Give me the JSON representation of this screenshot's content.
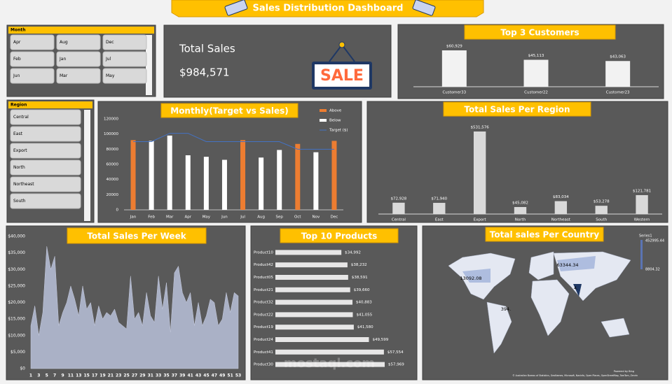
{
  "header": {
    "title": "Sales Distribution Dashboard"
  },
  "slicers": [
    {
      "title": "Month",
      "items": [
        "Apr",
        "Aug",
        "Dec",
        "Feb",
        "Jan",
        "Jul",
        "Jun",
        "Mar",
        "May"
      ]
    },
    {
      "title": "Region",
      "items": [
        "Central",
        "East",
        "Export",
        "North",
        "Northeast",
        "South"
      ]
    }
  ],
  "kpi": {
    "label": "Total Sales",
    "value": "$984,571",
    "sign": "SALE"
  },
  "watermark": "mostaql.com",
  "chart_data": [
    {
      "type": "bar",
      "title": "Top 3 Customers",
      "categories": [
        "Customer33",
        "Customer22",
        "Customer23"
      ],
      "values": [
        60929,
        45113,
        43063
      ],
      "value_labels": [
        "$60,929",
        "$45,113",
        "$43,063"
      ],
      "color": "#f2f2f2"
    },
    {
      "type": "combo",
      "title": "Monthly(Target vs Sales)",
      "categories": [
        "Jan",
        "Feb",
        "Mar",
        "Apr",
        "May",
        "Jun",
        "Jul",
        "Aug",
        "Sep",
        "Oct",
        "Nov",
        "Dec"
      ],
      "series": [
        {
          "name": "Above",
          "color": "#ed7d31",
          "values": [
            92000,
            null,
            null,
            null,
            null,
            null,
            92000,
            null,
            null,
            87000,
            null,
            91000
          ]
        },
        {
          "name": "Below",
          "color": "#ffffff",
          "values": [
            null,
            91000,
            98000,
            72000,
            70000,
            66000,
            null,
            69000,
            79000,
            null,
            76000,
            null
          ]
        },
        {
          "name": "Target ($)",
          "color": "#4472c4",
          "type": "line",
          "values": [
            90000,
            90000,
            101000,
            101000,
            90000,
            90000,
            90000,
            90000,
            90000,
            80000,
            80000,
            80000
          ]
        }
      ],
      "ylim": [
        0,
        120000
      ],
      "yticks": [
        0,
        20000,
        40000,
        60000,
        80000,
        100000,
        120000
      ],
      "legend": "top-right",
      "grid": false
    },
    {
      "type": "bar",
      "title": "Total Sales Per Region",
      "categories": [
        "Central",
        "East",
        "Export",
        "North",
        "Northeast",
        "South",
        "Western"
      ],
      "values": [
        72928,
        71940,
        531576,
        45082,
        83034,
        53278,
        121781
      ],
      "value_labels": [
        "$72,928",
        "$71,940",
        "$531,576",
        "$45,082",
        "$83,034",
        "$53,278",
        "$121,781"
      ],
      "color": "#d9d9d9"
    },
    {
      "type": "area",
      "title": "Total Sales Per Week",
      "x": [
        1,
        2,
        3,
        4,
        5,
        6,
        7,
        8,
        9,
        10,
        11,
        12,
        13,
        14,
        15,
        16,
        17,
        18,
        19,
        20,
        21,
        22,
        23,
        24,
        25,
        26,
        27,
        28,
        29,
        30,
        31,
        32,
        33,
        34,
        35,
        36,
        37,
        38,
        39,
        40,
        41,
        42,
        43,
        44,
        45,
        46,
        47,
        48,
        49,
        50,
        51,
        52,
        53
      ],
      "values": [
        13000,
        19000,
        10000,
        17000,
        37000,
        30000,
        34000,
        13000,
        17000,
        20000,
        25000,
        21000,
        16000,
        25000,
        18000,
        20000,
        13000,
        19000,
        15000,
        17000,
        16000,
        18000,
        14000,
        13000,
        12000,
        28000,
        15000,
        17000,
        13000,
        23000,
        16000,
        14000,
        28000,
        18000,
        26000,
        11000,
        29000,
        31000,
        23000,
        20000,
        23000,
        13000,
        20000,
        13000,
        16000,
        21000,
        20000,
        13000,
        15000,
        23000,
        17000,
        23000,
        22000
      ],
      "color": "#aab1c6",
      "xlim": [
        1,
        53
      ],
      "xticks": [
        1,
        3,
        5,
        7,
        9,
        11,
        13,
        15,
        17,
        19,
        21,
        23,
        25,
        27,
        29,
        31,
        33,
        35,
        37,
        39,
        41,
        43,
        45,
        47,
        49,
        51,
        53
      ],
      "ylim": [
        0,
        40000
      ],
      "yticks": [
        {
          "value": 0,
          "label": "$0"
        },
        {
          "value": 5000,
          "label": "$5,000"
        },
        {
          "value": 10000,
          "label": "$10,000"
        },
        {
          "value": 15000,
          "label": "$15,000"
        },
        {
          "value": 20000,
          "label": "$20,000"
        },
        {
          "value": 25000,
          "label": "$25,000"
        },
        {
          "value": 30000,
          "label": "$30,000"
        },
        {
          "value": 35000,
          "label": "$35,000"
        },
        {
          "value": 40000,
          "label": "$40,000"
        }
      ]
    },
    {
      "type": "hbar",
      "title": "Top 10 Products",
      "categories": [
        "Product10",
        "Product42",
        "Product05",
        "Product21",
        "Product32",
        "Product22",
        "Product19",
        "Product24",
        "Product41",
        "Product30"
      ],
      "values": [
        34992,
        38232,
        38591,
        39660,
        40883,
        41055,
        41580,
        49599,
        57554,
        57969
      ],
      "value_labels": [
        "$34,992",
        "$38,232",
        "$38,591",
        "$39,660",
        "$40,883",
        "$41,055",
        "$41,580",
        "$49,599",
        "$57,554",
        "$57,969"
      ],
      "color": "#e7e6e6"
    },
    {
      "type": "map",
      "title": "Total sales Per Country",
      "legend_title": "Series1",
      "scale": [
        452995.44,
        8804.32
      ],
      "labels": [
        "13092.08",
        "63344.34",
        "394.",
        "4."
      ],
      "attribution": "© Australian Bureau of Statistics, GeoNames, Microsoft, Navinfo, Open Places, OpenStreetMap, TomTom, Zenrin",
      "powered": "Powered by Bing"
    }
  ]
}
